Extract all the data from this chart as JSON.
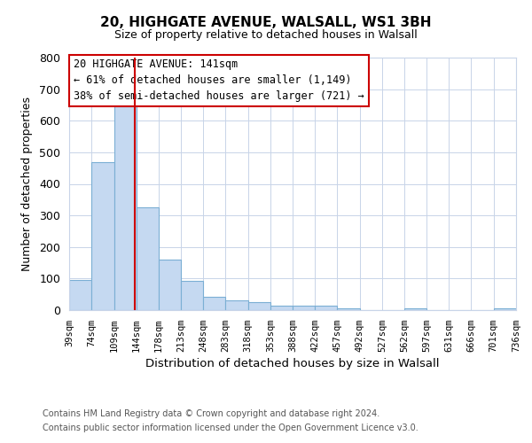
{
  "title": "20, HIGHGATE AVENUE, WALSALL, WS1 3BH",
  "subtitle": "Size of property relative to detached houses in Walsall",
  "bar_color": "#c5d9f1",
  "bar_edge_color": "#7bafd4",
  "vline_color": "#cc0000",
  "vline_x": 141,
  "bin_edges": [
    39,
    74,
    109,
    144,
    178,
    213,
    248,
    283,
    318,
    353,
    388,
    422,
    457,
    492,
    527,
    562,
    597,
    631,
    666,
    701,
    736
  ],
  "bar_heights": [
    95,
    470,
    645,
    325,
    160,
    93,
    43,
    30,
    25,
    14,
    14,
    13,
    5,
    0,
    0,
    5,
    0,
    0,
    0,
    5
  ],
  "xlabel": "Distribution of detached houses by size in Walsall",
  "ylabel": "Number of detached properties",
  "xlim": [
    39,
    736
  ],
  "ylim": [
    0,
    800
  ],
  "yticks": [
    0,
    100,
    200,
    300,
    400,
    500,
    600,
    700,
    800
  ],
  "xtick_labels": [
    "39sqm",
    "74sqm",
    "109sqm",
    "144sqm",
    "178sqm",
    "213sqm",
    "248sqm",
    "283sqm",
    "318sqm",
    "353sqm",
    "388sqm",
    "422sqm",
    "457sqm",
    "492sqm",
    "527sqm",
    "562sqm",
    "597sqm",
    "631sqm",
    "666sqm",
    "701sqm",
    "736sqm"
  ],
  "annotation_title": "20 HIGHGATE AVENUE: 141sqm",
  "annotation_line1": "← 61% of detached houses are smaller (1,149)",
  "annotation_line2": "38% of semi-detached houses are larger (721) →",
  "footer1": "Contains HM Land Registry data © Crown copyright and database right 2024.",
  "footer2": "Contains public sector information licensed under the Open Government Licence v3.0.",
  "background_color": "#ffffff",
  "grid_color": "#c8d4e8"
}
